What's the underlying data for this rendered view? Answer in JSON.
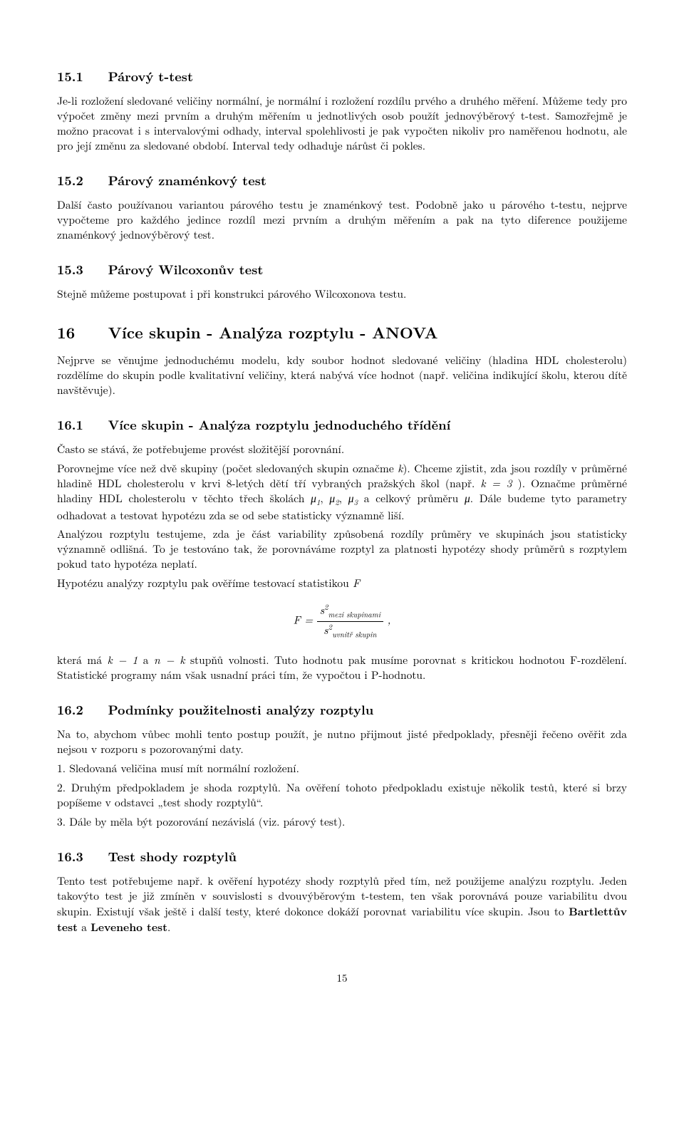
{
  "page_number": "15",
  "sections": {
    "s15_1": {
      "num": "15.1",
      "title": "Párový t-test",
      "p1": "Je-li rozložení sledované veličiny normální, je normální i rozložení rozdílu prvého a druhého měření. Můžeme tedy pro výpočet změny mezi prvním a druhým měřením u jednotlivých osob použít jednovýběrový t-test. Samozřejmě je možno pracovat i s intervalovými odhady, interval spolehlivosti je pak vypočten nikoliv pro naměřenou hodnotu, ale pro její změnu za sledované období. Interval tedy odhaduje nárůst či pokles."
    },
    "s15_2": {
      "num": "15.2",
      "title": "Párový znaménkový test",
      "p1": "Další často používanou variantou párového testu je znaménkový test. Podobně jako u párového t-testu, nejprve vypočteme pro každého jedince rozdíl mezi prvním a druhým měřením a pak na tyto diference použijeme znaménkový jednovýběrový test."
    },
    "s15_3": {
      "num": "15.3",
      "title": "Párový Wilcoxonův test",
      "p1": "Stejně můžeme postupovat i při konstrukci párového Wilcoxonova testu."
    },
    "s16": {
      "num": "16",
      "title": "Více skupin - Analýza rozptylu - ANOVA",
      "p1": "Nejprve se věnujme jednoduchému modelu, kdy soubor hodnot sledované veličiny (hladina HDL cholesterolu) rozdělíme do skupin podle kvalitativní veličiny, která nabývá více hodnot (např. veličina indikující školu, kterou dítě navštěvuje)."
    },
    "s16_1": {
      "num": "16.1",
      "title": "Více skupin - Analýza rozptylu jednoduchého třídění",
      "p1": "Často se stává, že potřebujeme provést složitější porovnání.",
      "p2a": "Porovnejme více než dvě skupiny (počet sledovaných skupin označme ",
      "p2b": "). Chceme zjistit, zda jsou rozdíly v průměrné hladině HDL cholesterolu v krvi 8-letých dětí tří vybraných pražských škol (např. ",
      "p2c": " ). Označme průměrné hladiny HDL cholesterolu v těchto třech školách ",
      "p2d": " a celkový průměru ",
      "p2e": ". Dále budeme tyto parametry odhadovat a testovat hypotézu zda se od sebe statisticky významně liší.",
      "k_eq_3": "k = 3",
      "k_var": "k",
      "mu1": "μ",
      "mu2": "μ",
      "mu3": "μ",
      "mu": "μ",
      "p3": "Analýzou rozptylu testujeme, zda je část variability způsobená rozdíly průměry ve skupinách jsou statisticky významně odlišná. To je testováno tak, že porovnáváme rozptyl za platnosti hypotézy shody průměrů s rozptylem pokud tato hypotéza neplatí.",
      "p4": "Hypotézu analýzy rozptylu pak ověříme testovací statistikou ",
      "F_var": "F",
      "formula": {
        "lhs": "F = ",
        "num_s": "s",
        "num_sub": "mezi skupinami",
        "den_s": "s",
        "den_sub": "uvnitř skupin",
        "sup2": "2"
      },
      "p5a": "která má ",
      "p5b": " a ",
      "p5c": " stupňů volnosti. Tuto hodnotu pak musíme porovnat s kritickou hodnotou F-rozdělení. Statistické programy nám však usnadní práci tím, že vypočtou i P-hodnotu.",
      "dof1": "k − 1",
      "dof2": "n − k"
    },
    "s16_2": {
      "num": "16.2",
      "title": "Podmínky použitelnosti analýzy rozptylu",
      "p1": "Na to, abychom vůbec mohli tento postup použít, je nutno přijmout jisté předpoklady, přesněji řečeno ověřit zda nejsou v rozporu s pozorovanými daty.",
      "li1": "1. Sledovaná veličina musí mít normální rozložení.",
      "li2": "2. Druhým předpokladem je shoda rozptylů. Na ověření tohoto předpokladu existuje několik testů, které si brzy popíšeme v odstavci „test shody rozptylů“.",
      "li3": "3. Dále by měla být pozorování nezávislá (viz. párový test)."
    },
    "s16_3": {
      "num": "16.3",
      "title": "Test shody rozptylů",
      "p1a": "Tento test potřebujeme např. k ověření hypotézy shody rozptylů před tím, než použijeme analýzu rozptylu. Jeden takovýto test je již zmíněn v souvislosti s dvouvýběrovým t-testem, ten však porovnává pouze variabilitu dvou skupin. Existují však ještě i další testy, které dokonce dokáží porovnat variabilitu více skupin. Jsou to ",
      "bartlett": "Bartlettův test",
      "p1b": " a ",
      "levene": "Leveneho test",
      "p1c": "."
    }
  }
}
